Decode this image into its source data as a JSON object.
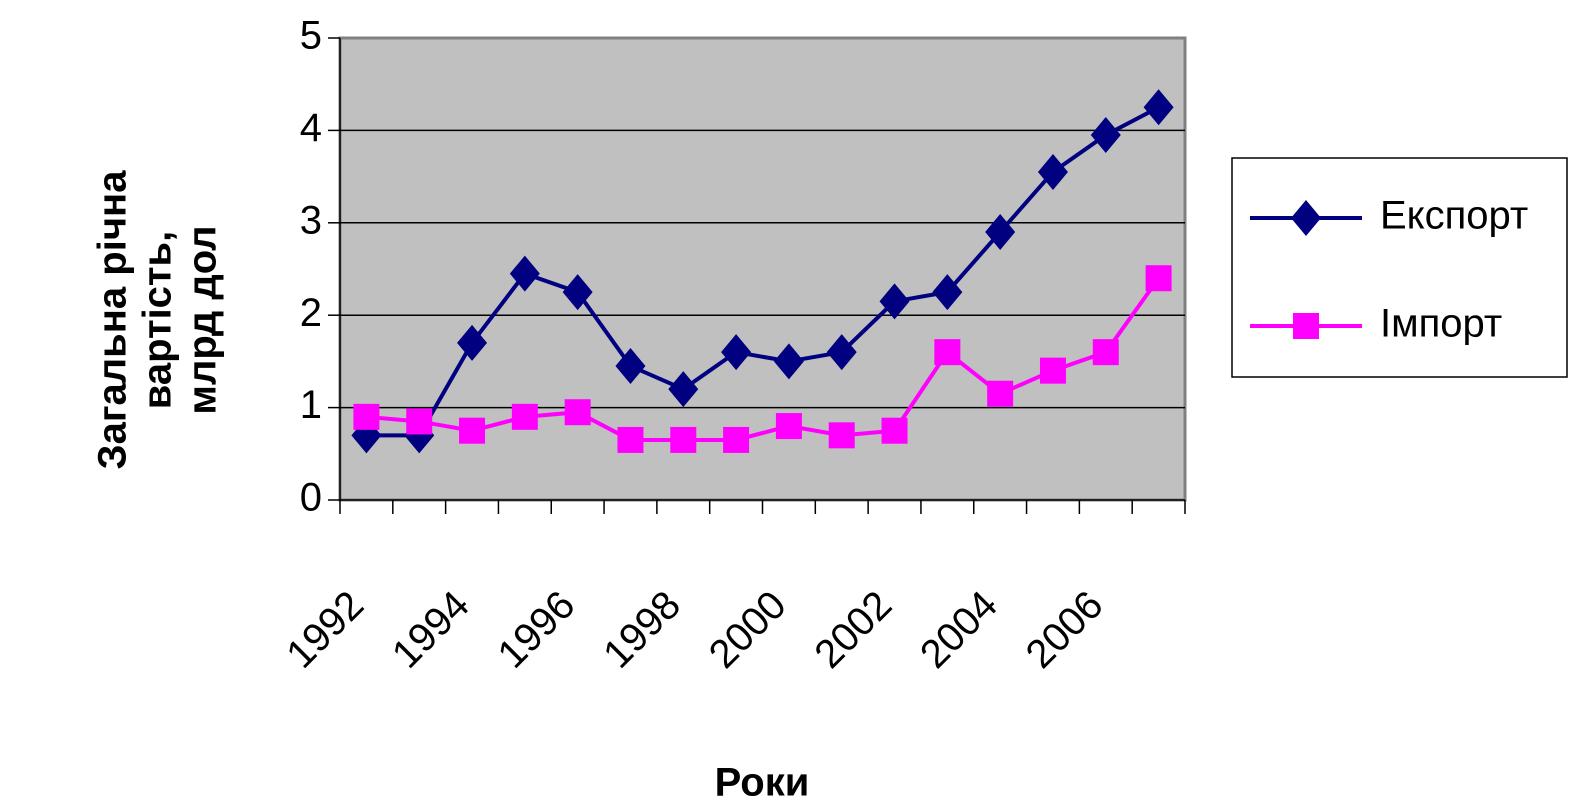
{
  "chart_data": {
    "type": "line",
    "y_label": [
      "Загальна річна",
      "вартість,",
      "млрд дол"
    ],
    "x_label": "Роки",
    "categories": [
      "1992",
      null,
      "1994",
      null,
      "1996",
      null,
      "1998",
      null,
      "2000",
      null,
      "2002",
      null,
      "2004",
      null,
      "2006",
      null
    ],
    "series": [
      {
        "name": "Експорт",
        "color": "#000080",
        "marker": "diamond",
        "values": [
          0.7,
          0.7,
          1.7,
          2.45,
          2.25,
          1.45,
          1.2,
          1.6,
          1.5,
          1.6,
          2.15,
          2.25,
          2.9,
          3.55,
          3.95,
          4.25
        ]
      },
      {
        "name": "Імпорт",
        "color": "#ff00ff",
        "marker": "square",
        "values": [
          0.9,
          0.85,
          0.75,
          0.9,
          0.95,
          0.65,
          0.65,
          0.65,
          0.8,
          0.7,
          0.75,
          1.6,
          1.15,
          1.4,
          1.6,
          2.4
        ]
      }
    ],
    "ylim": [
      0,
      5
    ],
    "yticks": [
      0,
      1,
      2,
      3,
      4,
      5
    ],
    "grid": true,
    "legend": "right"
  }
}
